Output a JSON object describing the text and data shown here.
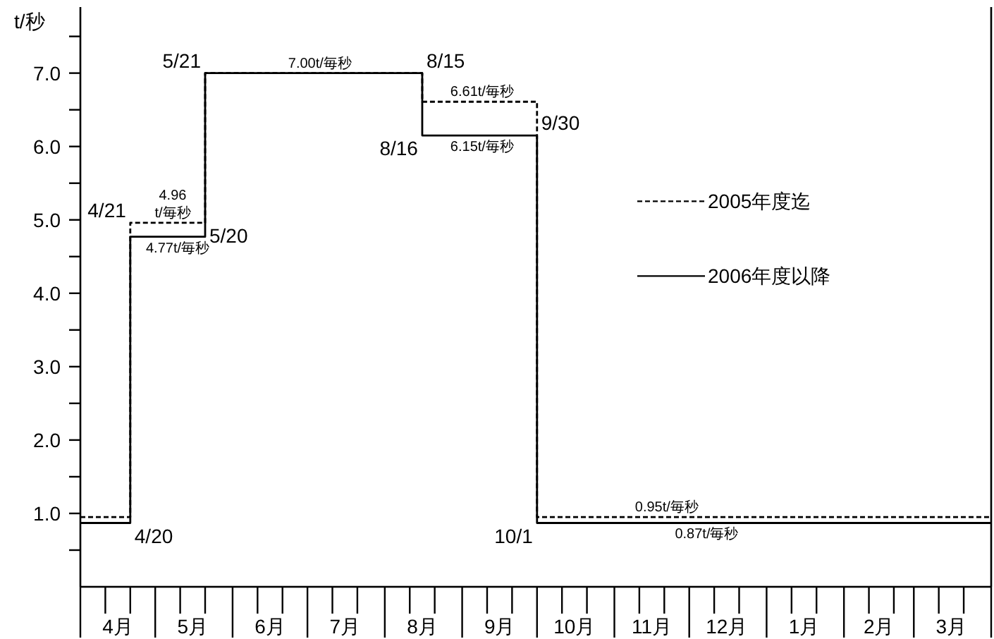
{
  "chart_data": {
    "type": "step",
    "ylabel": "t/秒",
    "legend": "right",
    "x": [
      "2006-04-01",
      "2006-04-21",
      "2006-05-21",
      "2006-08-16",
      "2006-10-01",
      "2007-04-01"
    ],
    "series": [
      {
        "name": "2005年度迄",
        "color": "#000000",
        "line_style": "dashed",
        "values": [
          0.95,
          4.96,
          7.0,
          6.61,
          0.95,
          0.95
        ]
      },
      {
        "name": "2006年度以降",
        "color": "#000000",
        "line_style": "solid",
        "values": [
          0.87,
          4.77,
          7.0,
          6.15,
          0.87,
          0.87
        ]
      }
    ],
    "xlim": [
      "2006-04-01",
      "2007-04-01"
    ],
    "xticks": [
      {
        "value": "2006-04-01",
        "label": null
      },
      {
        "value": "2006-04-11",
        "label": null
      },
      {
        "value": "2006-04-16",
        "label": "4月"
      },
      {
        "value": "2006-04-21",
        "label": null
      },
      {
        "value": "2006-05-01",
        "label": null
      },
      {
        "value": "2006-05-11",
        "label": null
      },
      {
        "value": "2006-05-16",
        "label": "5月"
      },
      {
        "value": "2006-05-21",
        "label": null
      },
      {
        "value": "2006-06-01",
        "label": null
      },
      {
        "value": "2006-06-11",
        "label": null
      },
      {
        "value": "2006-06-16",
        "label": "6月"
      },
      {
        "value": "2006-06-21",
        "label": null
      },
      {
        "value": "2006-07-01",
        "label": null
      },
      {
        "value": "2006-07-11",
        "label": null
      },
      {
        "value": "2006-07-16",
        "label": "7月"
      },
      {
        "value": "2006-07-21",
        "label": null
      },
      {
        "value": "2006-08-01",
        "label": null
      },
      {
        "value": "2006-08-11",
        "label": null
      },
      {
        "value": "2006-08-16",
        "label": "8月"
      },
      {
        "value": "2006-08-21",
        "label": null
      },
      {
        "value": "2006-09-01",
        "label": null
      },
      {
        "value": "2006-09-11",
        "label": null
      },
      {
        "value": "2006-09-16",
        "label": "9月"
      },
      {
        "value": "2006-09-21",
        "label": null
      },
      {
        "value": "2006-10-01",
        "label": null
      },
      {
        "value": "2006-10-11",
        "label": null
      },
      {
        "value": "2006-10-16",
        "label": "10月"
      },
      {
        "value": "2006-10-21",
        "label": null
      },
      {
        "value": "2006-11-01",
        "label": null
      },
      {
        "value": "2006-11-11",
        "label": null
      },
      {
        "value": "2006-11-16",
        "label": "11月"
      },
      {
        "value": "2006-11-21",
        "label": null
      },
      {
        "value": "2006-12-01",
        "label": null
      },
      {
        "value": "2006-12-11",
        "label": null
      },
      {
        "value": "2006-12-16",
        "label": "12月"
      },
      {
        "value": "2006-12-21",
        "label": null
      },
      {
        "value": "2007-01-01",
        "label": null
      },
      {
        "value": "2007-01-11",
        "label": null
      },
      {
        "value": "2007-01-16",
        "label": "1月"
      },
      {
        "value": "2007-01-21",
        "label": null
      },
      {
        "value": "2007-02-01",
        "label": null
      },
      {
        "value": "2007-02-11",
        "label": null
      },
      {
        "value": "2007-02-15",
        "label": "2月"
      },
      {
        "value": "2007-02-21",
        "label": null
      },
      {
        "value": "2007-03-01",
        "label": null
      },
      {
        "value": "2007-03-11",
        "label": null
      },
      {
        "value": "2007-03-16",
        "label": "3月"
      },
      {
        "value": "2007-03-21",
        "label": null
      },
      {
        "value": "2007-04-01",
        "label": null
      }
    ],
    "ylim": [
      0,
      7.9
    ],
    "yticks": [
      {
        "value": 0.5,
        "label": null
      },
      {
        "value": 1,
        "label": "1.0"
      },
      {
        "value": 1.5,
        "label": null
      },
      {
        "value": 2,
        "label": "2.0"
      },
      {
        "value": 2.5,
        "label": null
      },
      {
        "value": 3,
        "label": "3.0"
      },
      {
        "value": 3.5,
        "label": null
      },
      {
        "value": 4,
        "label": "4.0"
      },
      {
        "value": 4.5,
        "label": null
      },
      {
        "value": 5,
        "label": "5.0"
      },
      {
        "value": 5.5,
        "label": null
      },
      {
        "value": 6,
        "label": "6.0"
      },
      {
        "value": 6.5,
        "label": null
      },
      {
        "value": 7,
        "label": "7.0"
      },
      {
        "value": 7.5,
        "label": null
      }
    ],
    "annotations": [
      {
        "text": "4/20",
        "x": "2006-04-20",
        "y": 0.87
      },
      {
        "text": "4/21",
        "x": "2006-04-21",
        "y": 4.96
      },
      {
        "text": "4.96\nt/毎秒",
        "x": "2006-05-08",
        "y": 4.96
      },
      {
        "text": "4.77t/毎秒",
        "x": "2006-05-10",
        "y": 4.77
      },
      {
        "text": "5/20",
        "x": "2006-05-20",
        "y": 4.96
      },
      {
        "text": "5/21",
        "x": "2006-05-21",
        "y": 7.0
      },
      {
        "text": "7.00t/毎秒",
        "x": "2006-07-06",
        "y": 7.0
      },
      {
        "text": "8/15",
        "x": "2006-08-15",
        "y": 7.0
      },
      {
        "text": "8/16",
        "x": "2006-08-16",
        "y": 6.15
      },
      {
        "text": "6.61t/毎秒",
        "x": "2006-09-09",
        "y": 6.61
      },
      {
        "text": "6.15t/毎秒",
        "x": "2006-09-09",
        "y": 6.15
      },
      {
        "text": "9/30",
        "x": "2006-09-30",
        "y": 6.15
      },
      {
        "text": "10/1",
        "x": "2006-10-01",
        "y": 0.87
      },
      {
        "text": "0.95t/毎秒",
        "x": "2006-11-22",
        "y": 0.95
      },
      {
        "text": "0.87t/毎秒",
        "x": "2006-12-08",
        "y": 0.87
      }
    ]
  }
}
